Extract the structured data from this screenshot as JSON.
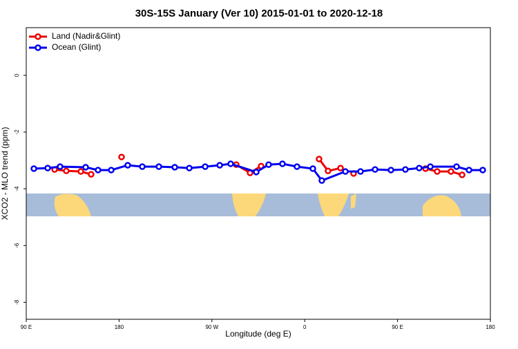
{
  "chart_data": {
    "type": "line",
    "title": "30S-15S January (Ver 10)   2015-01-01 to 2020-12-18",
    "x_label": "Longitude (deg E)",
    "y_label": "XCO2 - MLO trend (ppm)",
    "xlim": [
      90,
      540
    ],
    "ylim": [
      -8.6,
      1.68
    ],
    "xticks": [
      {
        "value": 90,
        "label": "90 E"
      },
      {
        "value": 180,
        "label": "180"
      },
      {
        "value": 270,
        "label": "90 W"
      },
      {
        "value": 360,
        "label": "0"
      },
      {
        "value": 450,
        "label": "90 E"
      },
      {
        "value": 540,
        "label": "180"
      }
    ],
    "yticks": [
      0,
      -2,
      -4,
      -6,
      -8
    ],
    "legend": "top-left",
    "series": [
      {
        "name": "Land (Nadir&Glint)",
        "color": "#ee0000",
        "x": [
          117.5,
          128.8,
          142.9,
          152.9,
          164,
          182.4,
          260,
          293.6,
          307.0,
          317.7,
          340,
          373.9,
          382.6,
          394.7,
          400,
          407.4,
          460,
          477.1,
          488.4,
          501.8,
          512.6
        ],
        "values": [
          -3.32,
          -3.37,
          -3.39,
          -3.49,
          null,
          -2.88,
          null,
          -3.15,
          -3.44,
          -3.2,
          null,
          -2.95,
          -3.37,
          -3.27,
          null,
          -3.46,
          null,
          -3.29,
          -3.39,
          -3.39,
          -3.51
        ]
      },
      {
        "name": "Ocean (Glint)",
        "color": "#0000ee",
        "x": [
          97.4,
          110.8,
          122.8,
          147.6,
          159.6,
          172.4,
          188.4,
          202.5,
          218.6,
          234.0,
          248.1,
          263.5,
          277.6,
          288.2,
          313.0,
          325.0,
          338.4,
          352.5,
          367.9,
          376.6,
          399.4,
          414.1,
          428.2,
          443.6,
          457.6,
          471.0,
          481.8,
          507.2,
          519.3,
          532.6
        ],
        "values": [
          -3.29,
          -3.27,
          -3.22,
          -3.24,
          -3.34,
          -3.34,
          -3.17,
          -3.22,
          -3.22,
          -3.24,
          -3.27,
          -3.22,
          -3.17,
          -3.12,
          -3.41,
          -3.15,
          -3.12,
          -3.22,
          -3.29,
          -3.71,
          -3.39,
          -3.39,
          -3.32,
          -3.34,
          -3.32,
          -3.27,
          -3.22,
          -3.22,
          -3.34,
          -3.34
        ]
      }
    ]
  }
}
